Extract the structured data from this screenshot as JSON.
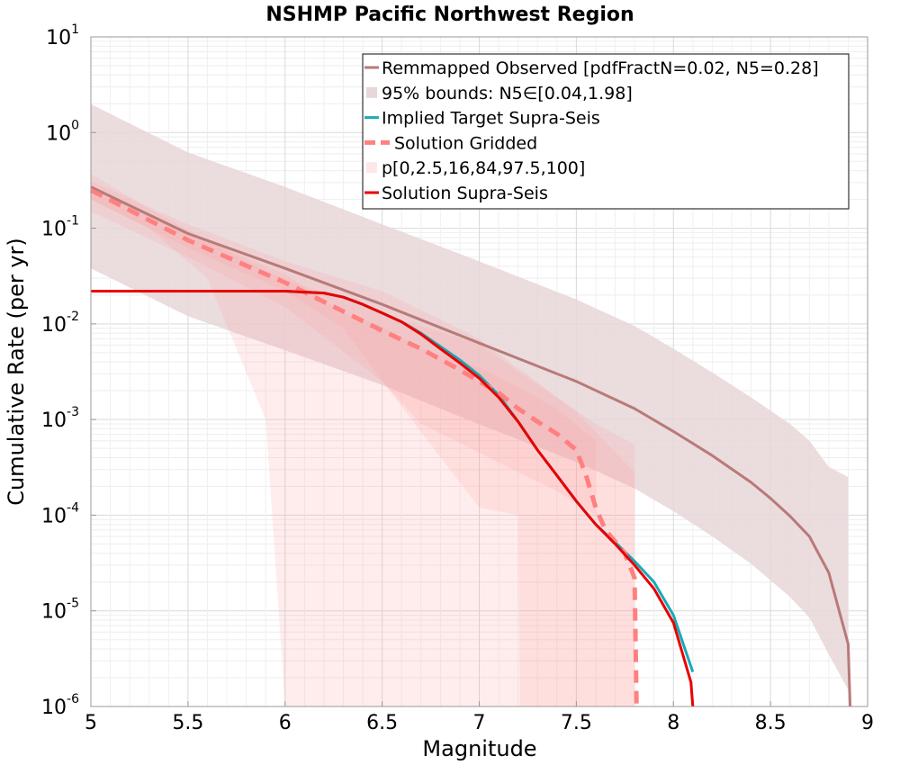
{
  "chart_data": {
    "type": "line",
    "title": "NSHMP Pacific Northwest Region",
    "xlabel": "Magnitude",
    "ylabel": "Cumulative Rate (per yr)",
    "xlim": [
      5,
      9
    ],
    "ylim_log10": [
      -6,
      1
    ],
    "y_scale": "log",
    "x_ticks": [
      "5",
      "5.5",
      "6",
      "6.5",
      "7",
      "7.5",
      "8",
      "8.5",
      "9"
    ],
    "y_tick_exponents": [
      "-6",
      "-5",
      "-4",
      "-3",
      "-2",
      "-1",
      "0",
      "1"
    ],
    "y_tick_base": "10",
    "grid": true,
    "legend_position": "top-right",
    "legend": [
      {
        "label": "Remmapped Observed [pdfFractN=0.02, N5=0.28]",
        "color": "#b87a78",
        "style": "solid"
      },
      {
        "label": "95% bounds: N5∈[0.04,1.98]",
        "color": "#e8d6d8",
        "style": "band"
      },
      {
        "label": "Implied Target Supra-Seis",
        "color": "#1aa9b8",
        "style": "solid"
      },
      {
        "label": "Solution Gridded",
        "color": "#ff8080",
        "style": "dashed"
      },
      {
        "label": "p[0,2.5,16,84,97.5,100]",
        "color": "#ffe6e6",
        "style": "band"
      },
      {
        "label": "Solution Supra-Seis",
        "color": "#e80000",
        "style": "solid"
      }
    ],
    "series": [
      {
        "name": "Remmapped Observed [pdfFractN=0.02, N5=0.28]",
        "color": "#b87a78",
        "x": [
          5.0,
          5.5,
          6.0,
          6.5,
          7.0,
          7.5,
          7.8,
          8.0,
          8.2,
          8.4,
          8.5,
          8.6,
          8.7,
          8.8,
          8.9,
          8.91
        ],
        "y": [
          0.27,
          0.088,
          0.038,
          0.016,
          0.0063,
          0.0025,
          0.0013,
          0.00075,
          0.00042,
          0.00022,
          0.00015,
          9.8e-05,
          6e-05,
          2.5e-05,
          4.5e-06,
          1e-06
        ]
      },
      {
        "name": "95% bounds: N5∈[0.04,1.98]",
        "color": "#e8d6d8",
        "x": [
          5.0,
          5.5,
          6.0,
          6.5,
          7.0,
          7.5,
          7.8,
          8.0,
          8.2,
          8.4,
          8.6,
          8.7,
          8.8,
          8.9
        ],
        "y_low": [
          0.038,
          0.012,
          0.0053,
          0.0023,
          0.00089,
          0.00036,
          0.00019,
          0.00011,
          6e-05,
          3.1e-05,
          1.4e-05,
          8.5e-06,
          3.5e-06,
          1.5e-06
        ],
        "y_high": [
          1.98,
          0.62,
          0.27,
          0.11,
          0.045,
          0.018,
          0.0095,
          0.0055,
          0.0031,
          0.0017,
          0.0009,
          0.0006,
          0.00032,
          0.00025
        ]
      },
      {
        "name": "Implied Target Supra-Seis",
        "color": "#1aa9b8",
        "x": [
          5.0,
          5.5,
          6.0,
          6.2,
          6.3,
          6.4,
          6.5,
          6.6,
          6.7,
          6.8,
          6.9,
          7.0,
          7.1,
          7.2,
          7.3,
          7.4,
          7.5,
          7.6,
          7.7,
          7.8,
          7.9,
          8.0,
          8.1
        ],
        "y": [
          0.022,
          0.022,
          0.022,
          0.021,
          0.019,
          0.016,
          0.013,
          0.0105,
          0.008,
          0.0058,
          0.0042,
          0.0029,
          0.0018,
          0.00095,
          0.00048,
          0.00026,
          0.00014,
          8e-05,
          5.2e-05,
          3.3e-05,
          2e-05,
          9e-06,
          2.3e-06
        ]
      },
      {
        "name": "Solution Gridded",
        "color": "#ff8080",
        "x": [
          5.0,
          5.5,
          6.0,
          6.5,
          6.7,
          6.9,
          7.0,
          7.1,
          7.2,
          7.3,
          7.4,
          7.5,
          7.55,
          7.6,
          7.65,
          7.7,
          7.75,
          7.8,
          7.81
        ],
        "y": [
          0.25,
          0.075,
          0.027,
          0.0085,
          0.0055,
          0.0033,
          0.0025,
          0.0019,
          0.0013,
          0.00095,
          0.00071,
          0.00048,
          0.00026,
          0.00012,
          7e-05,
          5.3e-05,
          4e-05,
          2.2e-05,
          1e-06
        ]
      },
      {
        "name": "p[0,2.5,16,84,97.5,100]",
        "color": "#ffe6e6",
        "bands": [
          {
            "x": [
              5.0,
              5.3,
              5.6,
              5.9,
              6.0,
              6.3,
              6.6,
              7.0,
              7.2,
              7.4,
              7.6,
              7.8
            ],
            "y_low": [
              0.2,
              0.1,
              0.03,
              0.001,
              1e-06,
              1e-06,
              1e-06,
              1e-06,
              1e-06,
              1e-06,
              1e-06,
              1e-06
            ],
            "y_high": [
              0.37,
              0.16,
              0.075,
              0.036,
              0.029,
              0.018,
              0.011,
              0.0062,
              0.0032,
              0.0017,
              0.0009,
              0.00055
            ]
          },
          {
            "x": [
              5.0,
              5.5,
              6.0,
              6.5,
              7.0,
              7.2,
              7.21,
              7.5,
              7.8
            ],
            "y_low": [
              0.15,
              0.05,
              0.015,
              0.0025,
              0.00012,
              0.0001,
              1e-06,
              1e-06,
              1e-06
            ],
            "y_high": [
              0.31,
              0.11,
              0.045,
              0.022,
              0.007,
              0.0034,
              0.0034,
              0.0012,
              0.00028
            ]
          },
          {
            "x": [
              5.0,
              5.5,
              6.0,
              6.3,
              6.5,
              6.7,
              7.0,
              7.2,
              7.4,
              7.6
            ],
            "y_low": [
              0.2,
              0.062,
              0.022,
              0.009,
              0.0025,
              0.0009,
              0.00045,
              0.00028,
              0.00018,
              0.0001
            ],
            "y_high": [
              0.28,
              0.09,
              0.033,
              0.013,
              0.0095,
              0.0055,
              0.0035,
              0.0022,
              0.0013,
              0.0006
            ]
          }
        ]
      },
      {
        "name": "Solution Supra-Seis",
        "color": "#e80000",
        "x": [
          5.0,
          5.5,
          6.0,
          6.2,
          6.3,
          6.4,
          6.5,
          6.6,
          6.7,
          6.8,
          6.9,
          7.0,
          7.1,
          7.2,
          7.3,
          7.4,
          7.5,
          7.6,
          7.7,
          7.8,
          7.9,
          8.0,
          8.09,
          8.1
        ],
        "y": [
          0.022,
          0.022,
          0.022,
          0.021,
          0.019,
          0.016,
          0.013,
          0.0105,
          0.0078,
          0.0055,
          0.0039,
          0.0027,
          0.0017,
          0.00095,
          0.00048,
          0.00026,
          0.00014,
          8e-05,
          5e-05,
          3e-05,
          1.7e-05,
          7.5e-06,
          1.8e-06,
          1e-06
        ]
      }
    ]
  }
}
